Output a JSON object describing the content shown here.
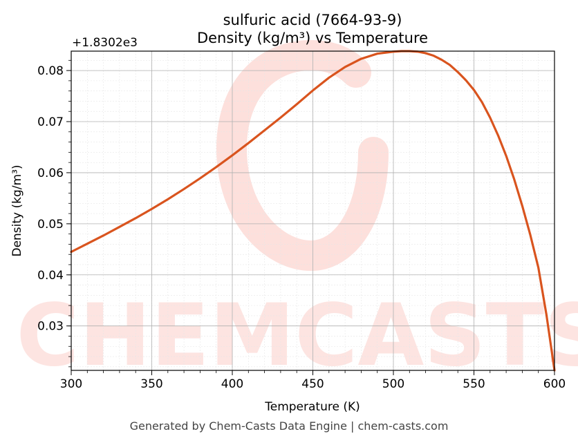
{
  "chart_data": {
    "type": "line",
    "title_line1": "sulfuric acid (7664-93-9)",
    "title_line2": "Density (kg/m³) vs Temperature",
    "xlabel": "Temperature (K)",
    "ylabel": "Density (kg/m³)",
    "y_offset_label": "+1.8302e3",
    "xlim": [
      300,
      600
    ],
    "ylim": [
      0.0213,
      0.0838
    ],
    "x_ticks": [
      300,
      350,
      400,
      450,
      500,
      550,
      600
    ],
    "x_tick_labels": [
      "300",
      "350",
      "400",
      "450",
      "500",
      "550",
      "600"
    ],
    "y_ticks": [
      0.03,
      0.04,
      0.05,
      0.06,
      0.07,
      0.08
    ],
    "y_tick_labels": [
      "0.03",
      "0.04",
      "0.05",
      "0.06",
      "0.07",
      "0.08"
    ],
    "grid": true,
    "series": [
      {
        "color": "#d9541e",
        "x": [
          300,
          310,
          320,
          330,
          340,
          350,
          360,
          370,
          380,
          390,
          400,
          410,
          420,
          430,
          440,
          450,
          460,
          470,
          480,
          490,
          500,
          505,
          510,
          515,
          520,
          525,
          530,
          535,
          540,
          545,
          550,
          555,
          560,
          565,
          570,
          575,
          580,
          585,
          590,
          595,
          600
        ],
        "y": [
          0.0445,
          0.0461,
          0.0477,
          0.0494,
          0.0511,
          0.0529,
          0.0548,
          0.0568,
          0.0589,
          0.0611,
          0.0634,
          0.0658,
          0.0683,
          0.0708,
          0.0734,
          0.0761,
          0.0786,
          0.0807,
          0.0823,
          0.0833,
          0.0837,
          0.0838,
          0.0838,
          0.0837,
          0.0834,
          0.0829,
          0.0821,
          0.0811,
          0.0797,
          0.0781,
          0.0762,
          0.0738,
          0.0708,
          0.0673,
          0.0633,
          0.0587,
          0.0535,
          0.0478,
          0.0414,
          0.0322,
          0.0213
        ]
      }
    ]
  },
  "watermark_text": "CHEMCASTS",
  "watermark_color": "#fde0dc",
  "footer": "Generated by Chem-Casts Data Engine | chem-casts.com"
}
